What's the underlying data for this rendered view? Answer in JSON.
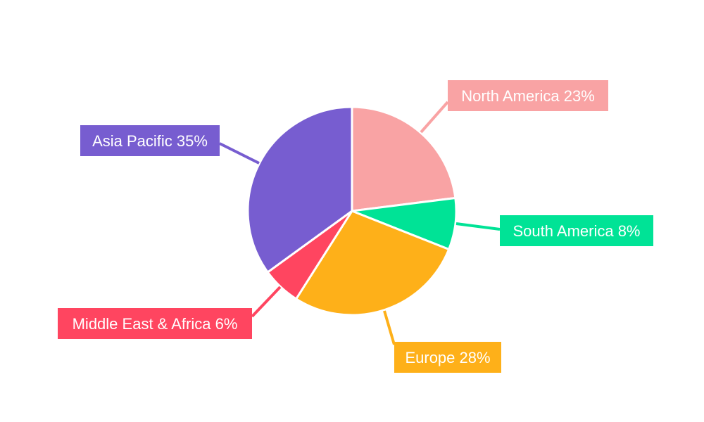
{
  "chart_data": {
    "type": "pie",
    "title": "",
    "categories": [
      "North America",
      "South America",
      "Europe",
      "Middle East & Africa",
      "Asia Pacific"
    ],
    "values": [
      23,
      8,
      28,
      6,
      35
    ],
    "unit": "%",
    "labels": [
      "North America 23%",
      "South America 8%",
      "Europe 28%",
      "Middle East & Africa 6%",
      "Asia Pacific 35%"
    ],
    "colors": [
      "#F9A3A4",
      "#00E396",
      "#FEB019",
      "#FF4560",
      "#775DD0"
    ],
    "start_angle": "12 o'clock",
    "direction": "clockwise",
    "legend": "none"
  }
}
